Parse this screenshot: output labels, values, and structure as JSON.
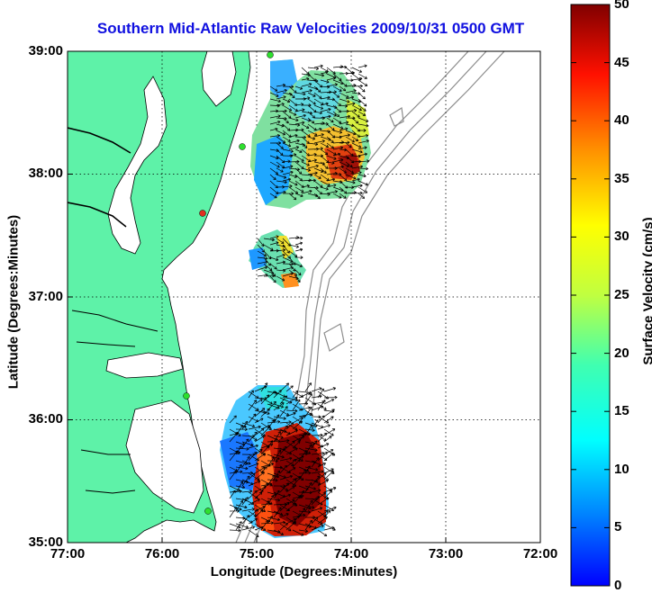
{
  "title": "Southern Mid-Atlantic Raw Velocities 2009/10/31 0500 GMT",
  "xlabel": "Longitude (Degrees:Minutes)",
  "ylabel": "Latitude (Degrees:Minutes)",
  "colorbar_label": "Surface Velocity (cm/s)",
  "x_ticks": [
    "77:00",
    "76:00",
    "75:00",
    "74:00",
    "73:00",
    "72:00"
  ],
  "y_ticks": [
    "39:00",
    "38:00",
    "37:00",
    "36:00",
    "35:00"
  ],
  "colorbar_ticks": [
    "50",
    "45",
    "40",
    "35",
    "30",
    "25",
    "20",
    "15",
    "10",
    "5",
    "0"
  ],
  "colors": {
    "land": "#5ef2a8",
    "title": "#1010e0",
    "bathymetry": "#8c8c8c",
    "station_green": "#2ee02e",
    "station_red": "#e03020"
  },
  "chart_data": {
    "type": "map",
    "title": "Southern Mid-Atlantic Raw Velocities 2009/10/31 0500 GMT",
    "xlabel": "Longitude (Degrees:Minutes)",
    "ylabel": "Latitude (Degrees:Minutes)",
    "xlim": [
      "77:00 W",
      "72:00 W"
    ],
    "ylim": [
      "35:00 N",
      "39:00 N"
    ],
    "grid": "dotted",
    "colorbar": {
      "label": "Surface Velocity (cm/s)",
      "range": [
        0,
        50
      ],
      "colormap": "jet"
    },
    "regions": [
      {
        "lat_range": [
          37.85,
          38.95
        ],
        "lon_range": [
          -75.05,
          -74.0
        ],
        "speed_range_cm_s": [
          5,
          45
        ]
      },
      {
        "lat_range": [
          37.2,
          37.5
        ],
        "lon_range": [
          -75.05,
          -74.6
        ],
        "speed_range_cm_s": [
          10,
          30
        ]
      },
      {
        "lat_range": [
          35.1,
          36.2
        ],
        "lon_range": [
          -75.4,
          -74.5
        ],
        "speed_range_cm_s": [
          5,
          50
        ]
      }
    ]
  }
}
